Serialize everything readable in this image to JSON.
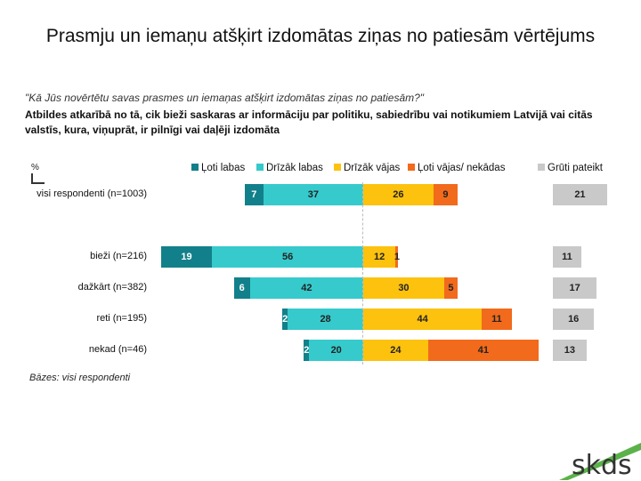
{
  "title": "Prasmju un iemaņu atšķirt izdomātas ziņas no patiesām vērtējums",
  "question": "\"Kā Jūs novērtētu savas prasmes un iemaņas atšķirt izdomātas ziņas no patiesām?\"",
  "subtitle": "Atbildes atkarībā no tā, cik bieži saskaras ar informāciju par politiku, sabiedrību vai notikumiem Latvijā vai citās valstīs, kura, viņuprāt, ir pilnīgi vai daļēji izdomāta",
  "percent_label": "%",
  "base_note": "Bāzes: visi respondenti",
  "logo_text": "skds",
  "chart_data": {
    "type": "bar",
    "orientation": "horizontal-diverging",
    "categories": [
      "visi respondenti (n=1003)",
      "bieži (n=216)",
      "dažkārt (n=382)",
      "reti (n=195)",
      "nekad (n=46)"
    ],
    "series": [
      {
        "name": "Ļoti labas",
        "color": "#12808a",
        "side": "left",
        "values": [
          7,
          19,
          6,
          2,
          2
        ]
      },
      {
        "name": "Drīzāk labas",
        "color": "#36cacc",
        "side": "left",
        "values": [
          37,
          56,
          42,
          28,
          20
        ]
      },
      {
        "name": "Drīzāk vājas",
        "color": "#fcc20e",
        "side": "right",
        "values": [
          26,
          12,
          30,
          44,
          24
        ]
      },
      {
        "name": "Ļoti vājas/ nekādas",
        "color": "#f26a1b",
        "side": "right",
        "values": [
          9,
          1,
          5,
          11,
          41
        ]
      },
      {
        "name": "Grūti pateikt",
        "color": "#c9c9c9",
        "side": "separate",
        "values": [
          21,
          11,
          17,
          16,
          13
        ]
      }
    ],
    "unit": "%",
    "legend_position": "top"
  }
}
